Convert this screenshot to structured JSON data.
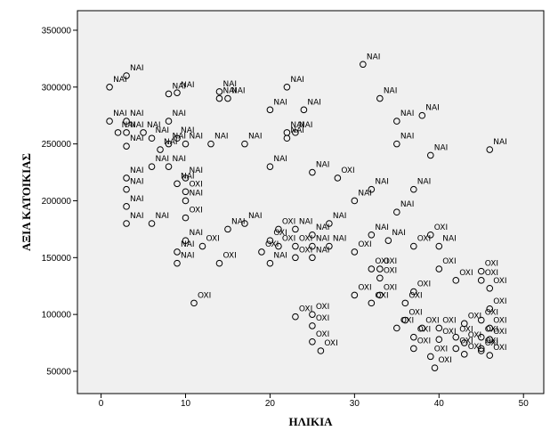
{
  "chart_data": {
    "type": "scatter",
    "x_label": "ΗΛΙΚΙΑ",
    "y_label": "ΑΞΙΑ ΚΑΤΟΙΚΙΑΣ",
    "x": [
      3,
      1,
      8,
      9,
      14,
      14,
      15,
      22,
      31,
      33,
      20,
      24,
      35,
      38,
      1,
      3,
      8,
      2,
      3,
      5,
      6,
      9,
      22,
      23,
      22,
      35,
      46,
      39,
      3,
      8,
      10,
      13,
      17,
      7,
      6,
      8,
      20,
      10,
      3,
      3,
      9,
      25,
      28,
      37,
      32,
      10,
      10,
      30,
      3,
      35,
      3,
      6,
      10,
      17,
      27,
      21,
      23,
      25,
      32,
      37,
      12,
      10,
      15,
      20,
      21,
      23,
      25,
      27,
      34,
      9,
      14,
      9,
      19,
      23,
      25,
      30,
      20,
      32,
      33,
      40,
      39,
      45,
      40,
      42,
      45,
      46,
      33,
      11,
      30,
      33,
      32,
      36,
      37,
      25,
      23,
      25,
      35,
      36,
      45,
      46,
      38,
      40,
      43,
      46,
      42,
      37,
      40,
      25,
      45,
      46,
      37,
      43,
      42,
      45,
      45,
      39,
      43,
      26,
      39.5,
      46
    ],
    "y": [
      310000,
      300000,
      294000,
      295000,
      296000,
      290000,
      290000,
      300000,
      320000,
      290000,
      280000,
      280000,
      270000,
      275000,
      270000,
      270000,
      270000,
      260000,
      260000,
      260000,
      255000,
      255000,
      260000,
      260000,
      255000,
      250000,
      245000,
      240000,
      248000,
      250000,
      250000,
      250000,
      250000,
      245000,
      230000,
      230000,
      230000,
      220000,
      220000,
      210000,
      215000,
      225000,
      220000,
      210000,
      210000,
      200000,
      208000,
      200000,
      195000,
      190000,
      180000,
      180000,
      185000,
      180000,
      180000,
      175000,
      175000,
      170000,
      170000,
      160000,
      160000,
      165000,
      175000,
      165000,
      160000,
      160000,
      160000,
      160000,
      165000,
      155000,
      145000,
      145000,
      155000,
      150000,
      150000,
      155000,
      145000,
      140000,
      140000,
      160000,
      170000,
      138000,
      140000,
      130000,
      130000,
      123000,
      132000,
      110000,
      117000,
      117000,
      110000,
      110000,
      120000,
      100000,
      98000,
      90000,
      88000,
      95000,
      95000,
      105000,
      88000,
      88000,
      92000,
      88000,
      80000,
      80000,
      78000,
      76000,
      80000,
      78000,
      70000,
      75000,
      70000,
      70000,
      68000,
      63000,
      65000,
      68000,
      53000,
      64000
    ],
    "point_labels": [
      "NAI",
      "NAI",
      "NAI",
      "NAI",
      "NAI",
      "NAI",
      "NAI",
      "NAI",
      "NAI",
      "NAI",
      "NAI",
      "NAI",
      "NAI",
      "NAI",
      "NAI",
      "NAI",
      "NAI",
      "NAI",
      "NAI",
      "NAI",
      "NAI",
      "NAI",
      "NAI",
      "NAI",
      "NAI",
      "NAI",
      "NAI",
      "NAI",
      "NAI",
      "NAI",
      "NAI",
      "NAI",
      "NAI",
      "NAI",
      "NAI",
      "NAI",
      "NAI",
      "NAI",
      "NAI",
      "NAI",
      "NAI",
      "NAI",
      "OXI",
      "NAI",
      "NAI",
      "NAI",
      "OXI",
      "NAI",
      "NAI",
      "NAI",
      "NAI",
      "NAI",
      "OXI",
      "NAI",
      "NAI",
      "OXI",
      "NAI",
      "NAI",
      "NAI",
      "OXI",
      "OXI",
      "NAI",
      "NAI",
      "OXI",
      "OXI",
      "OXI",
      "NAI",
      "NAI",
      "NAI",
      "NAI",
      "OXI",
      "NAI",
      "OXI",
      "OXI",
      "NAI",
      "OXI",
      "NAI",
      "OXI",
      "OXI",
      "NAI",
      "OXI",
      "OXI",
      "OXI",
      "OXI",
      "OXI",
      "OXI",
      "OXI",
      "OXI",
      "OXI",
      "OXI",
      "OXI",
      "OXI",
      "OXI",
      "OXI",
      "OXI",
      "OXI",
      "OXI",
      "OXI",
      "OXI",
      "OXI",
      "OXI",
      "OXI",
      "OXI",
      "OXI",
      "OXI",
      "OXI",
      "OXI",
      "OXI",
      "OXI",
      "OXI",
      "OXI",
      "OXI",
      "OXI",
      "OXI",
      "OXI",
      "OXI",
      "OXI",
      "OXI",
      "OXI",
      "OXI"
    ],
    "xlim": [
      -2.8,
      52.4
    ],
    "ylim": [
      30400,
      367200
    ],
    "xticks": [
      0,
      10,
      20,
      30,
      40,
      50
    ],
    "yticks": [
      50000,
      100000,
      150000,
      200000,
      250000,
      300000,
      350000
    ],
    "marker_color": "#000000",
    "plot_background": "#f0f0f0"
  }
}
